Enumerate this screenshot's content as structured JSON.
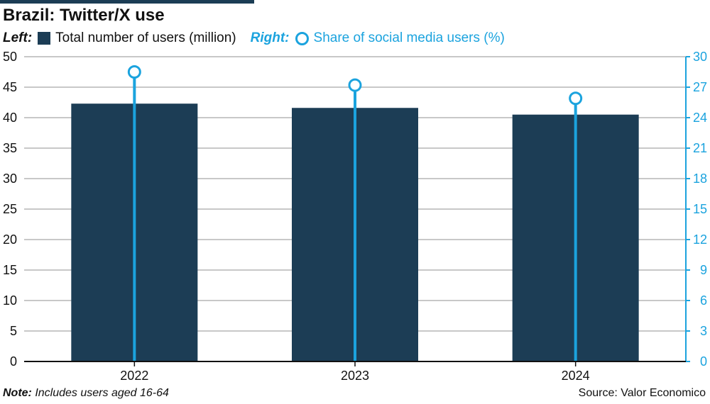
{
  "title": "Brazil: Twitter/X use",
  "legend": {
    "left_lead": "Left:",
    "left_label": "Total number of users (million)",
    "right_lead": "Right:",
    "right_label": "Share of social media users (%)"
  },
  "footnote": {
    "lead": "Note:",
    "text": " Includes users aged 16-64"
  },
  "source": "Source: Valor Economico",
  "colors": {
    "bar": "#1c3d55",
    "line": "#1ba3de",
    "grid": "#c8c8c8",
    "title_bar": "#1c3d55"
  },
  "chart_data": {
    "type": "bar",
    "categories": [
      "2022",
      "2023",
      "2024"
    ],
    "series": [
      {
        "name": "Total number of users (million)",
        "axis": "left",
        "type": "bar",
        "values": [
          42.3,
          41.6,
          40.5
        ]
      },
      {
        "name": "Share of social media users (%)",
        "axis": "right",
        "type": "lollipop",
        "values": [
          28.5,
          27.2,
          25.9
        ]
      }
    ],
    "left_axis": {
      "ylim": [
        0,
        50
      ],
      "ticks": [
        "0",
        "5",
        "10",
        "15",
        "20",
        "25",
        "30",
        "35",
        "40",
        "45",
        "50"
      ]
    },
    "right_axis": {
      "ylim": [
        0,
        30
      ],
      "ticks": [
        "0",
        "3",
        "6",
        "9",
        "12",
        "15",
        "18",
        "21",
        "24",
        "27",
        "30"
      ]
    },
    "grid": true
  }
}
